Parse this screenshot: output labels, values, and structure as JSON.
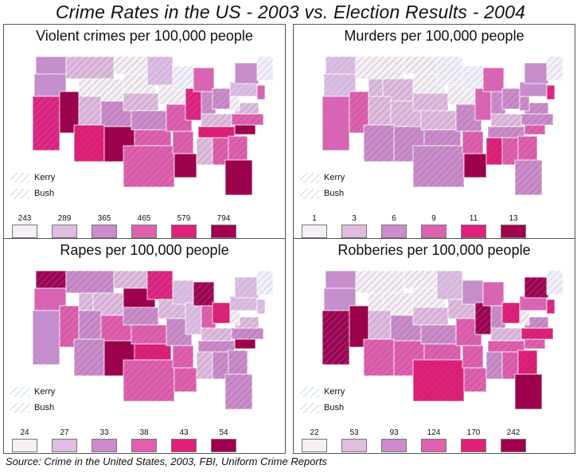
{
  "title": "Crime Rates in the US - 2003 vs. Election Results - 2004",
  "source": "Source: Crime in the United States, 2003, FBI, Uniform Crime Reports",
  "candidate_key": {
    "kerry_label": "Kerry",
    "bush_label": "Bush",
    "kerry_hatch_color": "#6aa3e0",
    "bush_hatch_color": "#333333"
  },
  "palette": [
    "#f6f0f6",
    "#e0bde0",
    "#cc8ccc",
    "#e060b0",
    "#e0207a",
    "#a0004e"
  ],
  "panels": [
    {
      "title": "Violent crimes per 100,000 people",
      "breaks": [
        "243",
        "289",
        "365",
        "465",
        "579",
        "794"
      ]
    },
    {
      "title": "Murders per 100,000 people",
      "breaks": [
        "1",
        "3",
        "6",
        "9",
        "11",
        "13"
      ]
    },
    {
      "title": "Rapes per 100,000 people",
      "breaks": [
        "24",
        "27",
        "33",
        "38",
        "43",
        "54"
      ]
    },
    {
      "title": "Robberies per 100,000 people",
      "breaks": [
        "22",
        "53",
        "93",
        "124",
        "170",
        "242"
      ]
    }
  ]
}
